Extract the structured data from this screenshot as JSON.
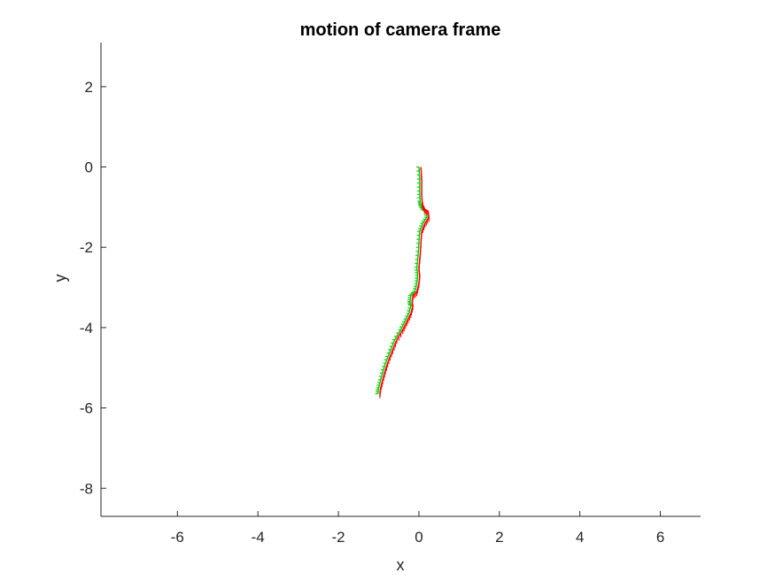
{
  "chart_data": {
    "type": "line",
    "title": "motion of camera frame",
    "xlabel": "x",
    "ylabel": "y",
    "xlim": [
      -7.9,
      7.0
    ],
    "ylim": [
      -8.7,
      3.1
    ],
    "xticks": [
      -6,
      -4,
      -2,
      0,
      2,
      4,
      6
    ],
    "yticks": [
      2,
      0,
      -2,
      -4,
      -6,
      -8
    ],
    "xtick_labels": [
      "-6",
      "-4",
      "-2",
      "0",
      "2",
      "4",
      "6"
    ],
    "ytick_labels": [
      "2",
      "0",
      "-2",
      "-4",
      "-6",
      "-8"
    ],
    "grid": false,
    "axis_box": "left-bottom",
    "series": [
      {
        "color": "#00cc00",
        "x": [
          0.0,
          0.02,
          0.02,
          0.03,
          0.05,
          0.1,
          0.18,
          0.2,
          0.1,
          0.02,
          0.0,
          -0.02,
          -0.05,
          -0.03,
          -0.05,
          -0.1,
          -0.2,
          -0.22,
          -0.2,
          -0.25,
          -0.35,
          -0.45,
          -0.6,
          -0.7,
          -0.8,
          -0.88,
          -0.95,
          -1.0,
          -1.02
        ],
        "y": [
          0.0,
          -0.3,
          -0.6,
          -0.85,
          -0.95,
          -1.05,
          -1.1,
          -1.25,
          -1.4,
          -1.6,
          -1.9,
          -2.2,
          -2.5,
          -2.7,
          -2.9,
          -3.1,
          -3.2,
          -3.35,
          -3.45,
          -3.65,
          -3.85,
          -4.05,
          -4.3,
          -4.55,
          -4.8,
          -5.05,
          -5.3,
          -5.5,
          -5.65
        ]
      },
      {
        "color": "#ff0000",
        "x": [
          0.05,
          0.07,
          0.07,
          0.08,
          0.1,
          0.15,
          0.23,
          0.25,
          0.15,
          0.07,
          0.05,
          0.03,
          0.0,
          0.02,
          0.0,
          -0.05,
          -0.15,
          -0.17,
          -0.15,
          -0.2,
          -0.3,
          -0.4,
          -0.55,
          -0.65,
          -0.75,
          -0.83,
          -0.9,
          -0.95,
          -0.97
        ],
        "y": [
          0.0,
          -0.3,
          -0.6,
          -0.85,
          -0.95,
          -1.05,
          -1.1,
          -1.25,
          -1.4,
          -1.6,
          -1.9,
          -2.2,
          -2.5,
          -2.7,
          -2.9,
          -3.1,
          -3.2,
          -3.35,
          -3.45,
          -3.65,
          -3.85,
          -4.05,
          -4.3,
          -4.55,
          -4.8,
          -5.05,
          -5.3,
          -5.5,
          -5.65
        ]
      }
    ]
  }
}
